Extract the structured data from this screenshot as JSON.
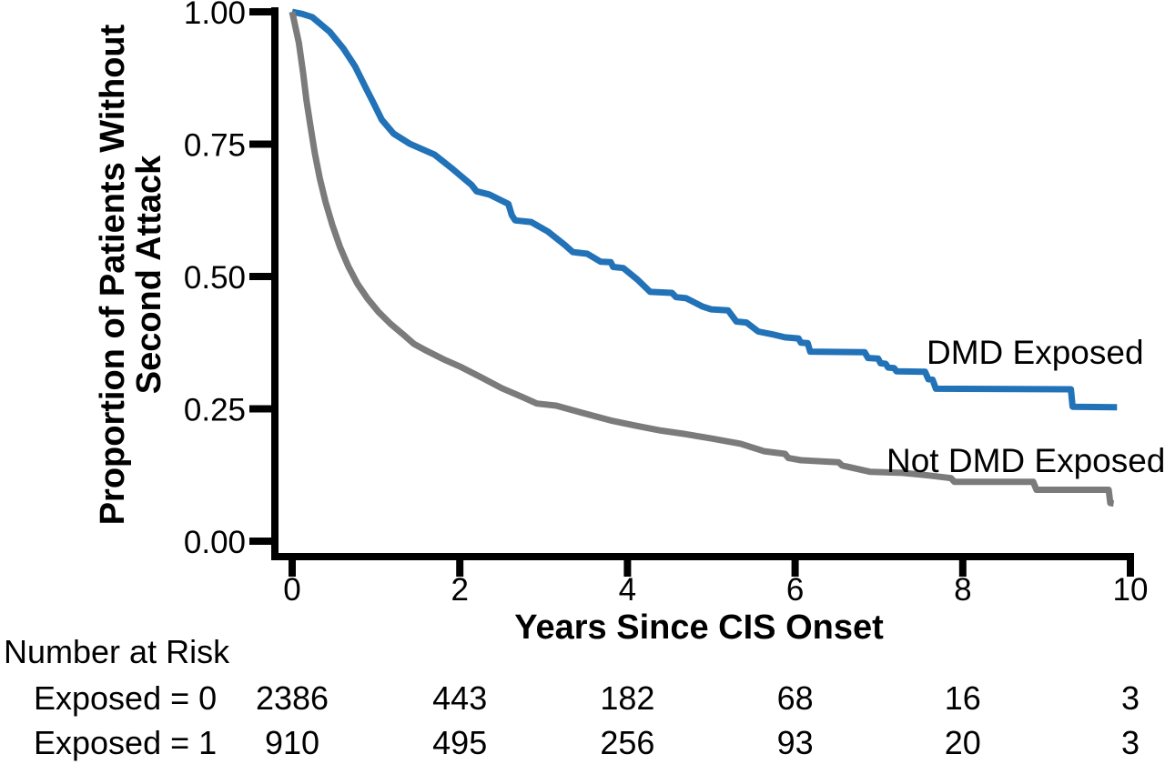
{
  "chart_data": {
    "type": "line",
    "subtype": "kaplan-meier-step-curves",
    "title": "",
    "xlabel": "Years Since CIS Onset",
    "ylabel_line1": "Proportion of Patients Without",
    "ylabel_line2": "Second Attack",
    "xlim": [
      0,
      10
    ],
    "ylim": [
      0.0,
      1.0
    ],
    "xticks": [
      "0",
      "2",
      "4",
      "6",
      "8",
      "10"
    ],
    "yticks": [
      "1.00",
      "0.75",
      "0.50",
      "0.25",
      "0.00"
    ],
    "grid": false,
    "legend_position": "labels-inline-right-of-curves",
    "colors": {
      "axis": "#000000",
      "dmd_exposed": "#2272b8",
      "not_dmd_exposed": "#7b7b7b"
    },
    "series": [
      {
        "name": "DMD Exposed",
        "color": "#2272b8",
        "points": [
          [
            0,
            1
          ],
          [
            0.12,
            0.996
          ],
          [
            0.24,
            0.99
          ],
          [
            0.45,
            0.962
          ],
          [
            0.61,
            0.931
          ],
          [
            0.75,
            0.897
          ],
          [
            0.88,
            0.856
          ],
          [
            0.97,
            0.828
          ],
          [
            1.07,
            0.796
          ],
          [
            1.21,
            0.77
          ],
          [
            1.4,
            0.751
          ],
          [
            1.7,
            0.73
          ],
          [
            1.9,
            0.705
          ],
          [
            2.14,
            0.673
          ],
          [
            2.2,
            0.661
          ],
          [
            2.35,
            0.655
          ],
          [
            2.58,
            0.637
          ],
          [
            2.62,
            0.616
          ],
          [
            2.66,
            0.606
          ],
          [
            2.85,
            0.603
          ],
          [
            3.05,
            0.585
          ],
          [
            3.25,
            0.56
          ],
          [
            3.35,
            0.546
          ],
          [
            3.52,
            0.543
          ],
          [
            3.68,
            0.528
          ],
          [
            3.8,
            0.527
          ],
          [
            3.83,
            0.518
          ],
          [
            3.95,
            0.516
          ],
          [
            4.12,
            0.494
          ],
          [
            4.27,
            0.471
          ],
          [
            4.53,
            0.469
          ],
          [
            4.58,
            0.461
          ],
          [
            4.7,
            0.459
          ],
          [
            4.9,
            0.443
          ],
          [
            5,
            0.438
          ],
          [
            5.2,
            0.436
          ],
          [
            5.3,
            0.415
          ],
          [
            5.42,
            0.413
          ],
          [
            5.56,
            0.396
          ],
          [
            5.72,
            0.391
          ],
          [
            5.88,
            0.385
          ],
          [
            6.04,
            0.383
          ],
          [
            6.07,
            0.375
          ],
          [
            6.15,
            0.374
          ],
          [
            6.18,
            0.358
          ],
          [
            6.83,
            0.357
          ],
          [
            6.87,
            0.346
          ],
          [
            6.99,
            0.345
          ],
          [
            7.02,
            0.336
          ],
          [
            7.08,
            0.335
          ],
          [
            7.11,
            0.328
          ],
          [
            7.18,
            0.327
          ],
          [
            7.21,
            0.321
          ],
          [
            7.55,
            0.32
          ],
          [
            7.59,
            0.306
          ],
          [
            7.64,
            0.305
          ],
          [
            7.68,
            0.288
          ],
          [
            9.29,
            0.287
          ],
          [
            9.31,
            0.254
          ],
          [
            9.84,
            0.253
          ]
        ]
      },
      {
        "name": "Not DMD Exposed",
        "color": "#7b7b7b",
        "points": [
          [
            0,
            1
          ],
          [
            0.08,
            0.941
          ],
          [
            0.13,
            0.885
          ],
          [
            0.17,
            0.833
          ],
          [
            0.22,
            0.782
          ],
          [
            0.27,
            0.733
          ],
          [
            0.33,
            0.685
          ],
          [
            0.4,
            0.64
          ],
          [
            0.48,
            0.597
          ],
          [
            0.57,
            0.556
          ],
          [
            0.67,
            0.519
          ],
          [
            0.78,
            0.486
          ],
          [
            0.9,
            0.458
          ],
          [
            1.03,
            0.433
          ],
          [
            1.17,
            0.411
          ],
          [
            1.32,
            0.391
          ],
          [
            1.45,
            0.373
          ],
          [
            1.6,
            0.36
          ],
          [
            1.8,
            0.344
          ],
          [
            2,
            0.33
          ],
          [
            2.25,
            0.31
          ],
          [
            2.5,
            0.289
          ],
          [
            2.75,
            0.272
          ],
          [
            2.92,
            0.26
          ],
          [
            3.15,
            0.256
          ],
          [
            3.45,
            0.243
          ],
          [
            3.8,
            0.228
          ],
          [
            4.1,
            0.218
          ],
          [
            4.4,
            0.209
          ],
          [
            4.7,
            0.202
          ],
          [
            5,
            0.194
          ],
          [
            5.35,
            0.184
          ],
          [
            5.63,
            0.17
          ],
          [
            5.88,
            0.165
          ],
          [
            5.92,
            0.157
          ],
          [
            6.07,
            0.153
          ],
          [
            6.52,
            0.149
          ],
          [
            6.56,
            0.143
          ],
          [
            6.9,
            0.131
          ],
          [
            7.28,
            0.129
          ],
          [
            7.6,
            0.124
          ],
          [
            7.86,
            0.119
          ],
          [
            7.9,
            0.112
          ],
          [
            8.84,
            0.112
          ],
          [
            8.88,
            0.097
          ],
          [
            9.74,
            0.097
          ],
          [
            9.76,
            0.072
          ],
          [
            9.8,
            0.071
          ]
        ]
      }
    ]
  },
  "number_at_risk": {
    "title": "Number at Risk",
    "columns_years": [
      0,
      2,
      4,
      6,
      8,
      10
    ],
    "rows": [
      {
        "label": "Exposed = 0",
        "values": [
          "2386",
          "443",
          "182",
          "68",
          "16",
          "3"
        ]
      },
      {
        "label": "Exposed = 1",
        "values": [
          "910",
          "495",
          "256",
          "93",
          "20",
          "3"
        ]
      }
    ]
  }
}
